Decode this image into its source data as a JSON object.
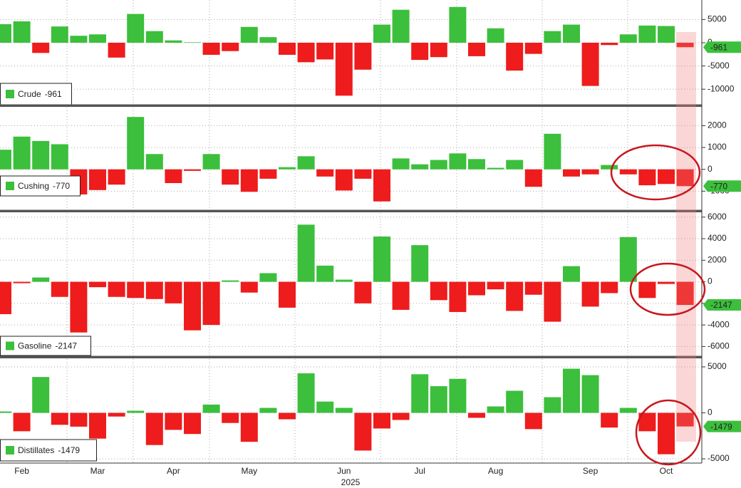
{
  "chart_data": [
    {
      "type": "bar",
      "series": [
        {
          "name": "Crude",
          "values": [
            4000,
            4600,
            -2200,
            3500,
            1500,
            1800,
            -3200,
            6200,
            2500,
            500,
            100,
            -2600,
            -1800,
            3400,
            1200,
            -2600,
            -4200,
            -3600,
            -11400,
            -5800,
            3900,
            7100,
            -3700,
            -3100,
            7700,
            -2900,
            3100,
            -6000,
            -2400,
            2500,
            3900,
            -9300,
            -500,
            1800,
            3700,
            3600,
            -961
          ]
        }
      ],
      "ylim": [
        -13500,
        9200
      ],
      "yticks": [
        5000,
        0,
        -5000,
        -10000
      ],
      "grid": true,
      "positive_color": "#3cbf3c",
      "negative_color": "#ee1c1c"
    },
    {
      "type": "bar",
      "series": [
        {
          "name": "Cushing",
          "values": [
            900,
            1500,
            1300,
            1150,
            -1150,
            -950,
            -700,
            2400,
            700,
            -630,
            -70,
            700,
            -700,
            -1030,
            -430,
            100,
            600,
            -330,
            -970,
            -430,
            -1470,
            500,
            230,
            430,
            730,
            470,
            70,
            430,
            -800,
            1630,
            -330,
            -230,
            200,
            -230,
            -730,
            -670,
            -770
          ]
        }
      ],
      "ylim": [
        -1870,
        2830
      ],
      "yticks": [
        2000,
        1000,
        0,
        -1000
      ],
      "grid": true,
      "positive_color": "#3cbf3c",
      "negative_color": "#ee1c1c"
    },
    {
      "type": "bar",
      "series": [
        {
          "name": "Gasoline",
          "values": [
            -3000,
            -130,
            400,
            -1400,
            -4700,
            -500,
            -1400,
            -1500,
            -1600,
            -2000,
            -4500,
            -4000,
            130,
            -1000,
            800,
            -2400,
            5300,
            1500,
            200,
            -2000,
            4200,
            -2600,
            3400,
            -1700,
            -2800,
            -1250,
            -700,
            -2700,
            -1200,
            -3700,
            1450,
            -2300,
            -1050,
            4150,
            -1500,
            -200,
            -2147
          ]
        }
      ],
      "ylim": [
        -6900,
        6380
      ],
      "yticks": [
        6000,
        4000,
        2000,
        0,
        -2000,
        -4000,
        -6000
      ],
      "grid": true,
      "positive_color": "#3cbf3c",
      "negative_color": "#ee1c1c"
    },
    {
      "type": "bar",
      "series": [
        {
          "name": "Distillates",
          "values": [
            150,
            -2000,
            3900,
            -1300,
            -1500,
            -2800,
            -400,
            230,
            -3500,
            -1850,
            -2300,
            900,
            -1100,
            -3150,
            540,
            -700,
            4300,
            1230,
            540,
            -4100,
            -1700,
            -770,
            4200,
            2900,
            3700,
            -540,
            700,
            2400,
            -1770,
            1700,
            4800,
            4100,
            -1600,
            540,
            -2000,
            -4500,
            -1479
          ]
        }
      ],
      "ylim": [
        -5460,
        5850
      ],
      "yticks": [
        5000,
        0,
        -5000
      ],
      "grid": true,
      "positive_color": "#3cbf3c",
      "negative_color": "#ee1c1c",
      "categories": [
        null,
        "Feb",
        null,
        null,
        null,
        "Mar",
        null,
        null,
        null,
        "Apr",
        null,
        null,
        null,
        "May",
        null,
        null,
        null,
        null,
        "Jun",
        null,
        null,
        null,
        "Jul",
        null,
        null,
        null,
        "Aug",
        null,
        null,
        null,
        null,
        "Sep",
        null,
        null,
        null,
        "Oct",
        null
      ],
      "xlabel": "2025"
    }
  ]
}
